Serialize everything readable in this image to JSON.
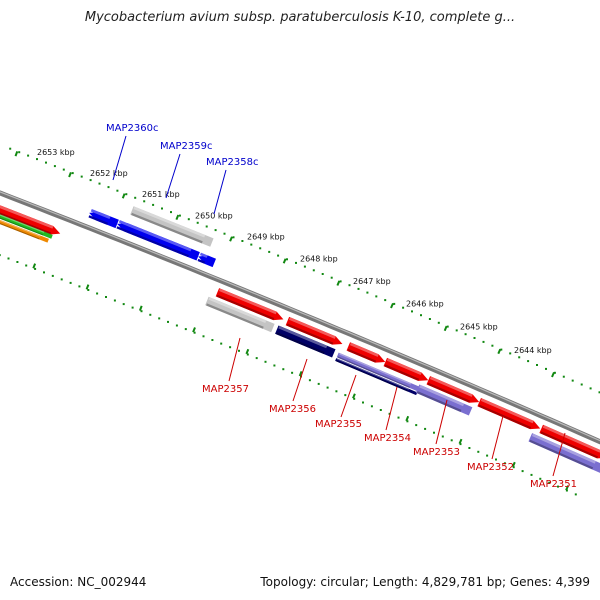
{
  "title": "Mycobacterium avium subsp. paratuberculosis K-10, complete g...",
  "footer": {
    "accession": "Accession: NC_002944",
    "topology": "Topology: circular; Length: 4,829,781 bp; Genes: 4,399"
  },
  "colors": {
    "backbone": "#777777",
    "ticks": "#118811",
    "forward_label": "#0000cc",
    "reverse_label": "#cc0000",
    "cds_reverse": "#ee0000",
    "cds_forward": "#0000ee",
    "gene_grey": "#c4c4c4",
    "navy": "#000066",
    "lavender": "#7a6fd0",
    "green": "#22bb22",
    "orange": "#ee8800"
  },
  "map": {
    "scale_labels": [
      "2653 kbp",
      "2652 kbp",
      "2651 kbp",
      "2650 kbp",
      "2649 kbp",
      "2648 kbp",
      "2647 kbp",
      "2646 kbp",
      "2645 kbp",
      "2644 kbp"
    ],
    "forward_genes": [
      "MAP2360c",
      "MAP2359c",
      "MAP2358c"
    ],
    "reverse_genes": [
      "MAP2357",
      "MAP2356",
      "MAP2355",
      "MAP2354",
      "MAP2353",
      "MAP2352",
      "MAP2351"
    ]
  }
}
